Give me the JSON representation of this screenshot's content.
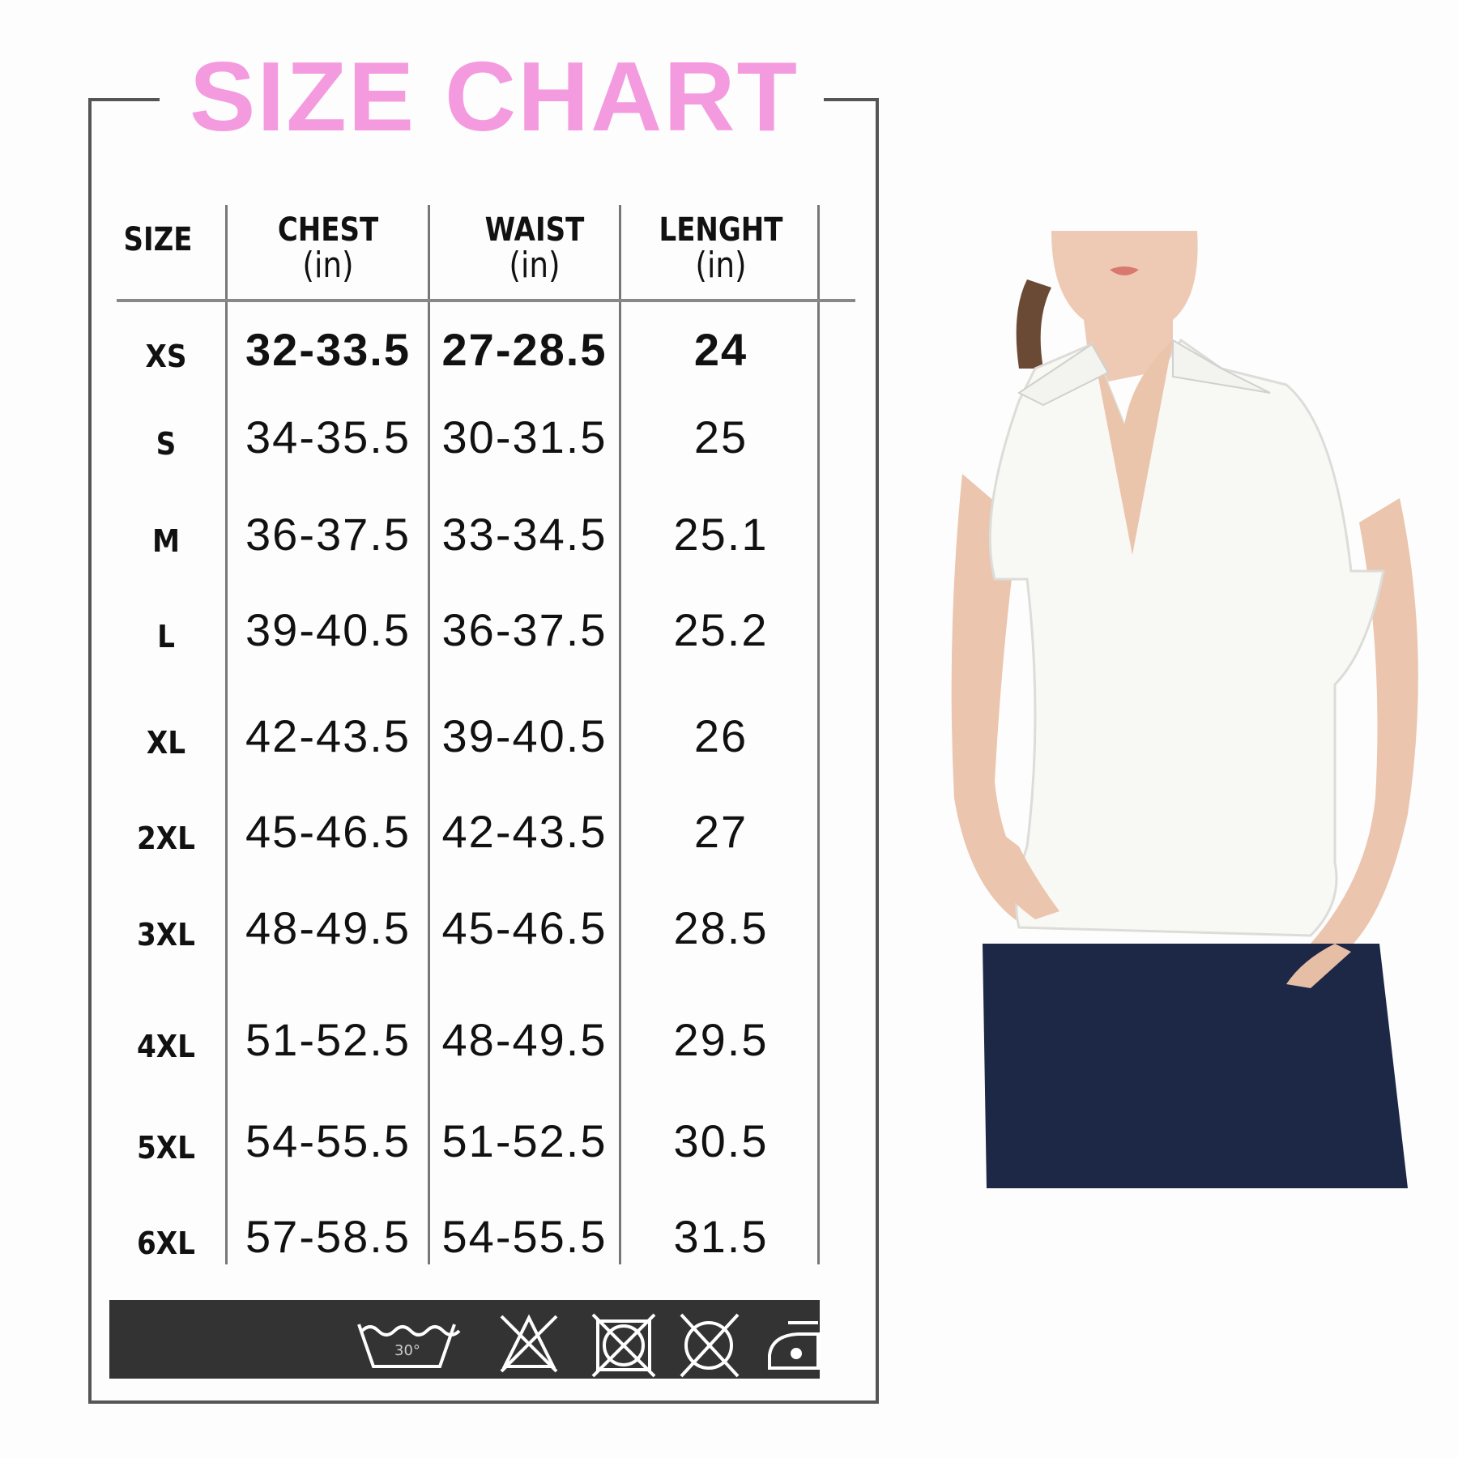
{
  "title": "SIZE CHART",
  "title_color": "#f49be0",
  "headers": {
    "size": "SIZE",
    "chest": "CHEST",
    "waist": "WAIST",
    "length": "LENGHT",
    "unit": "(in)"
  },
  "rows": [
    {
      "size": "XS",
      "chest": "32-33.5",
      "waist": "27-28.5",
      "length": "24"
    },
    {
      "size": "S",
      "chest": "34-35.5",
      "waist": "30-31.5",
      "length": "25"
    },
    {
      "size": "M",
      "chest": "36-37.5",
      "waist": "33-34.5",
      "length": "25.1"
    },
    {
      "size": "L",
      "chest": "39-40.5",
      "waist": "36-37.5",
      "length": "25.2"
    },
    {
      "size": "XL",
      "chest": "42-43.5",
      "waist": "39-40.5",
      "length": "26"
    },
    {
      "size": "2XL",
      "chest": "45-46.5",
      "waist": "42-43.5",
      "length": "27"
    },
    {
      "size": "3XL",
      "chest": "48-49.5",
      "waist": "45-46.5",
      "length": "28.5"
    },
    {
      "size": "4XL",
      "chest": "51-52.5",
      "waist": "48-49.5",
      "length": "29.5"
    },
    {
      "size": "5XL",
      "chest": "54-55.5",
      "waist": "51-52.5",
      "length": "30.5"
    },
    {
      "size": "6XL",
      "chest": "57-58.5",
      "waist": "54-55.5",
      "length": "31.5"
    }
  ],
  "care": {
    "wash_temp": "30°",
    "icons": [
      "wash-30-icon",
      "do-not-bleach-icon",
      "do-not-tumble-dry-icon",
      "do-not-dry-clean-icon",
      "iron-low-icon"
    ]
  }
}
